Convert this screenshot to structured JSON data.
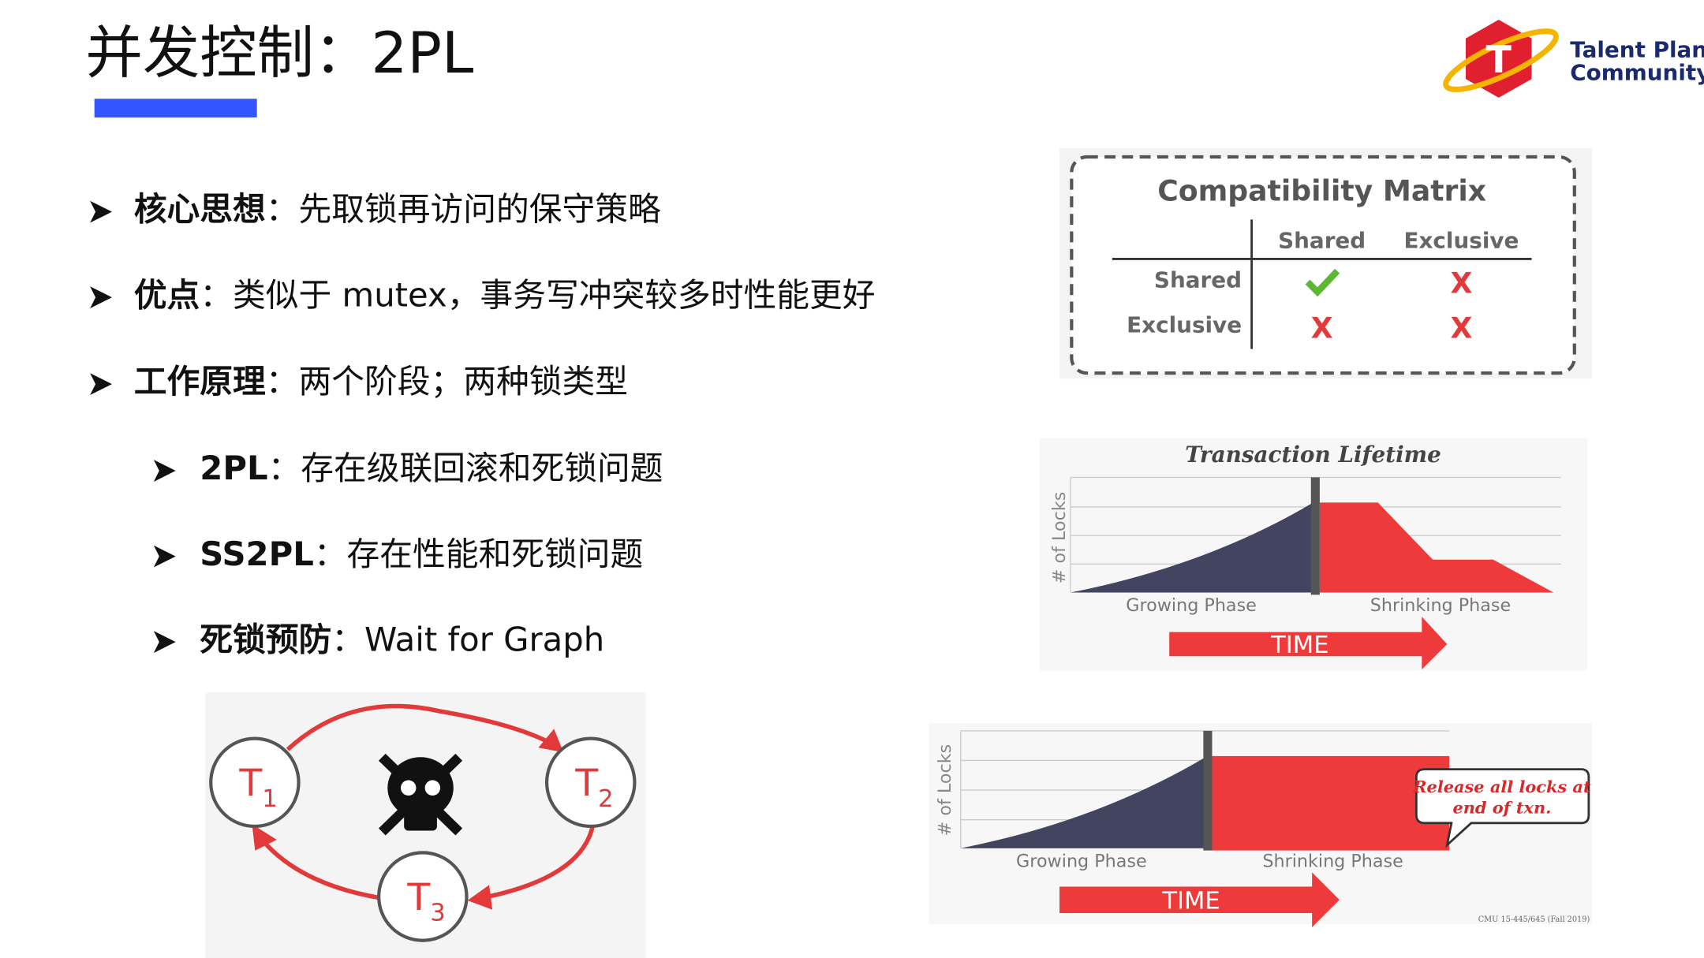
{
  "title": "并发控制：2PL",
  "logo": {
    "line1": "Talent Plan",
    "line2": "Community"
  },
  "bullets": [
    {
      "term": "核心思想",
      "text": "：先取锁再访问的保守策略"
    },
    {
      "term": "优点",
      "text": "：类似于 mutex，事务写冲突较多时性能更好"
    },
    {
      "term": "工作原理",
      "text": "：两个阶段；两种锁类型"
    }
  ],
  "sub_bullets": [
    {
      "term": "2PL",
      "text": "：存在级联回滚和死锁问题"
    },
    {
      "term": "SS2PL",
      "text": "：存在性能和死锁问题"
    },
    {
      "term": "死锁预防",
      "text": "：Wait for Graph"
    }
  ],
  "matrix": {
    "title": "Compatibility Matrix",
    "columns": [
      "Shared",
      "Exclusive"
    ],
    "rows": [
      {
        "label": "Shared",
        "marks": [
          "X"
        ]
      },
      {
        "label": "Exclusive",
        "marks": [
          "X",
          "X"
        ]
      }
    ]
  },
  "lifetime": {
    "title": "Transaction Lifetime",
    "y_label": "# of Locks",
    "phases": [
      "Growing Phase",
      "Shrinking Phase"
    ],
    "time": "TIME"
  },
  "lifetime2": {
    "y_label": "# of Locks",
    "phases": [
      "Growing Phase",
      "Shrinking Phase"
    ],
    "time": "TIME",
    "note": [
      "Release all locks at",
      "end of txn."
    ],
    "source": "CMU 15-445/645 (Fall 2019)"
  },
  "graph": {
    "nodes": [
      {
        "label": "T",
        "sub": "1"
      },
      {
        "label": "T",
        "sub": "2"
      },
      {
        "label": "T",
        "sub": "3"
      }
    ]
  }
}
